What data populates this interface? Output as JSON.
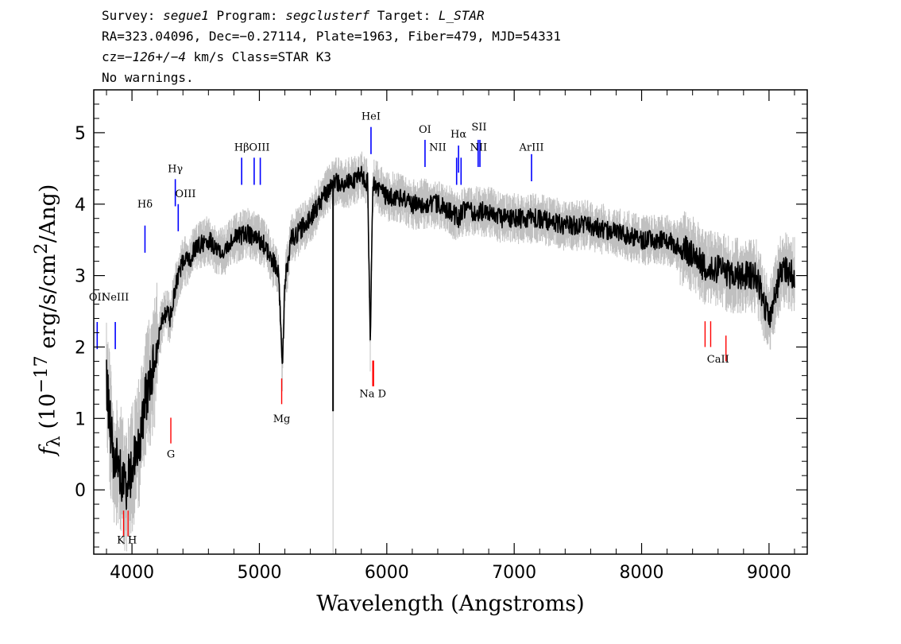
{
  "header": {
    "line1_pre": "Survey: ",
    "survey": "segue1",
    "line1_mid": " Program: ",
    "program": "segclusterf",
    "line1_mid2": " Target: ",
    "target": "L_STAR",
    "line2": "RA=323.04096, Dec=−0.27114, Plate=1963, Fiber=479, MJD=54331",
    "line3_pre": "cz=",
    "cz": "−126+/−4",
    "line3_post": " km/s Class=STAR K3",
    "line4": "No warnings."
  },
  "chart_data": {
    "type": "line",
    "xlabel": "Wavelength (Angstroms)",
    "ylabel": "f_λ (10^-17 erg/s/cm^2/Ang)",
    "xlim": [
      3700,
      9300
    ],
    "ylim": [
      -0.9,
      5.6
    ],
    "xticks": [
      4000,
      5000,
      6000,
      7000,
      8000,
      9000
    ],
    "yticks": [
      0,
      1,
      2,
      3,
      4,
      5
    ],
    "grid": false,
    "colors": {
      "flux": "#000000",
      "error": "#c0c0c0",
      "emission": "#0000ff",
      "absorption": "#ff0000"
    },
    "series": [
      {
        "x": [
          3800,
          3850,
          3900,
          3950,
          4000,
          4050,
          4100,
          4150,
          4200,
          4250,
          4300,
          4350,
          4400,
          4450,
          4500,
          4600,
          4700,
          4800,
          4900,
          5000,
          5050,
          5100,
          5150,
          5180,
          5200,
          5250,
          5300,
          5400,
          5500,
          5600,
          5700,
          5800,
          5850,
          5870,
          5890,
          5900,
          5950,
          6000,
          6100,
          6200,
          6300,
          6400,
          6500,
          6560,
          6600,
          6700,
          6800,
          6900,
          7000,
          7200,
          7400,
          7600,
          7800,
          8000,
          8200,
          8400,
          8500,
          8600,
          8700,
          8800,
          8900,
          9000,
          9100,
          9200
        ],
        "y": [
          1.5,
          0.5,
          0.3,
          0.0,
          0.3,
          0.6,
          1.2,
          1.6,
          2.0,
          2.5,
          2.4,
          2.9,
          3.2,
          3.2,
          3.4,
          3.5,
          3.3,
          3.5,
          3.6,
          3.5,
          3.4,
          3.2,
          3.1,
          1.7,
          2.9,
          3.5,
          3.6,
          3.8,
          4.1,
          4.3,
          4.3,
          4.4,
          4.3,
          2.0,
          4.2,
          4.3,
          4.2,
          4.1,
          4.1,
          4.0,
          4.0,
          4.0,
          3.9,
          3.8,
          3.9,
          3.9,
          3.9,
          3.8,
          3.8,
          3.8,
          3.7,
          3.7,
          3.6,
          3.5,
          3.5,
          3.3,
          3.1,
          3.1,
          3.0,
          3.0,
          3.0,
          2.4,
          3.1,
          3.0
        ]
      }
    ],
    "emission_lines": [
      {
        "label": "OII",
        "x": 3727,
        "ytop": 2.35
      },
      {
        "label": "NeIII",
        "x": 3869,
        "ytop": 2.35
      },
      {
        "label": "Hδ",
        "x": 4102,
        "ytop": 3.7
      },
      {
        "label": "Hγ",
        "x": 4340,
        "ytop": 4.35
      },
      {
        "label": "OIII",
        "x": 4363,
        "ytop": 4.0
      },
      {
        "label": "Hβ",
        "x": 4861,
        "ytop": 4.65
      },
      {
        "label": "OIII",
        "x": 4959,
        "ytop": 4.65
      },
      {
        "label": "OIII",
        "x": 5007,
        "ytop": 4.65
      },
      {
        "label": "HeI",
        "x": 5876,
        "ytop": 5.08
      },
      {
        "label": "OI",
        "x": 6300,
        "ytop": 4.9
      },
      {
        "label": "NII",
        "x": 6548,
        "ytop": 4.65
      },
      {
        "label": "Hα",
        "x": 6563,
        "ytop": 4.82
      },
      {
        "label": "NII",
        "x": 6583,
        "ytop": 4.65
      },
      {
        "label": "SII",
        "x": 6717,
        "ytop": 4.9
      },
      {
        "label": "SII",
        "x": 6731,
        "ytop": 4.9
      },
      {
        "label": "ArIII",
        "x": 7136,
        "ytop": 4.7
      }
    ],
    "emission_label_positions": [
      {
        "label": "OII",
        "x": 3727,
        "y": 2.65
      },
      {
        "label": "NeIII",
        "x": 3869,
        "y": 2.65
      },
      {
        "label": "Hδ",
        "x": 4102,
        "y": 3.95
      },
      {
        "label": "Hγ",
        "x": 4340,
        "y": 4.45
      },
      {
        "label": "OIII",
        "x": 4420,
        "y": 4.1
      },
      {
        "label": "Hβ",
        "x": 4861,
        "y": 4.75
      },
      {
        "label": "OIII",
        "x": 5000,
        "y": 4.75
      },
      {
        "label": "HeI",
        "x": 5876,
        "y": 5.18
      },
      {
        "label": "OI",
        "x": 6300,
        "y": 5.0
      },
      {
        "label": "NII",
        "x": 6400,
        "y": 4.75
      },
      {
        "label": "Hα",
        "x": 6563,
        "y": 4.93
      },
      {
        "label": "NII",
        "x": 6720,
        "y": 4.75
      },
      {
        "label": "SII",
        "x": 6724,
        "y": 5.03
      },
      {
        "label": "ArIII",
        "x": 7136,
        "y": 4.75
      }
    ],
    "absorption_lines": [
      {
        "label": "K",
        "x": 3934,
        "ybot": -0.65
      },
      {
        "label": "H",
        "x": 3969,
        "ybot": -0.65
      },
      {
        "label": "G",
        "x": 4305,
        "ybot": 0.65
      },
      {
        "label": "Mg",
        "x": 5175,
        "ybot": 1.2
      },
      {
        "label": "Na",
        "x": 5890,
        "ybot": 1.45
      },
      {
        "label": "Na",
        "x": 5896,
        "ybot": 1.45
      },
      {
        "label": "CaII",
        "x": 8498,
        "ybot": 2.0
      },
      {
        "label": "CaII",
        "x": 8542,
        "ybot": 2.0
      },
      {
        "label": "CaII",
        "x": 8662,
        "ybot": 1.8
      }
    ],
    "absorption_label_positions": [
      {
        "label": "K H",
        "x": 3960,
        "y": -0.75
      },
      {
        "label": "G",
        "x": 4305,
        "y": 0.45
      },
      {
        "label": "Mg",
        "x": 5175,
        "y": 0.95
      },
      {
        "label": "Na D",
        "x": 5890,
        "y": 1.3
      },
      {
        "label": "CaII",
        "x": 8600,
        "y": 1.78
      }
    ]
  }
}
